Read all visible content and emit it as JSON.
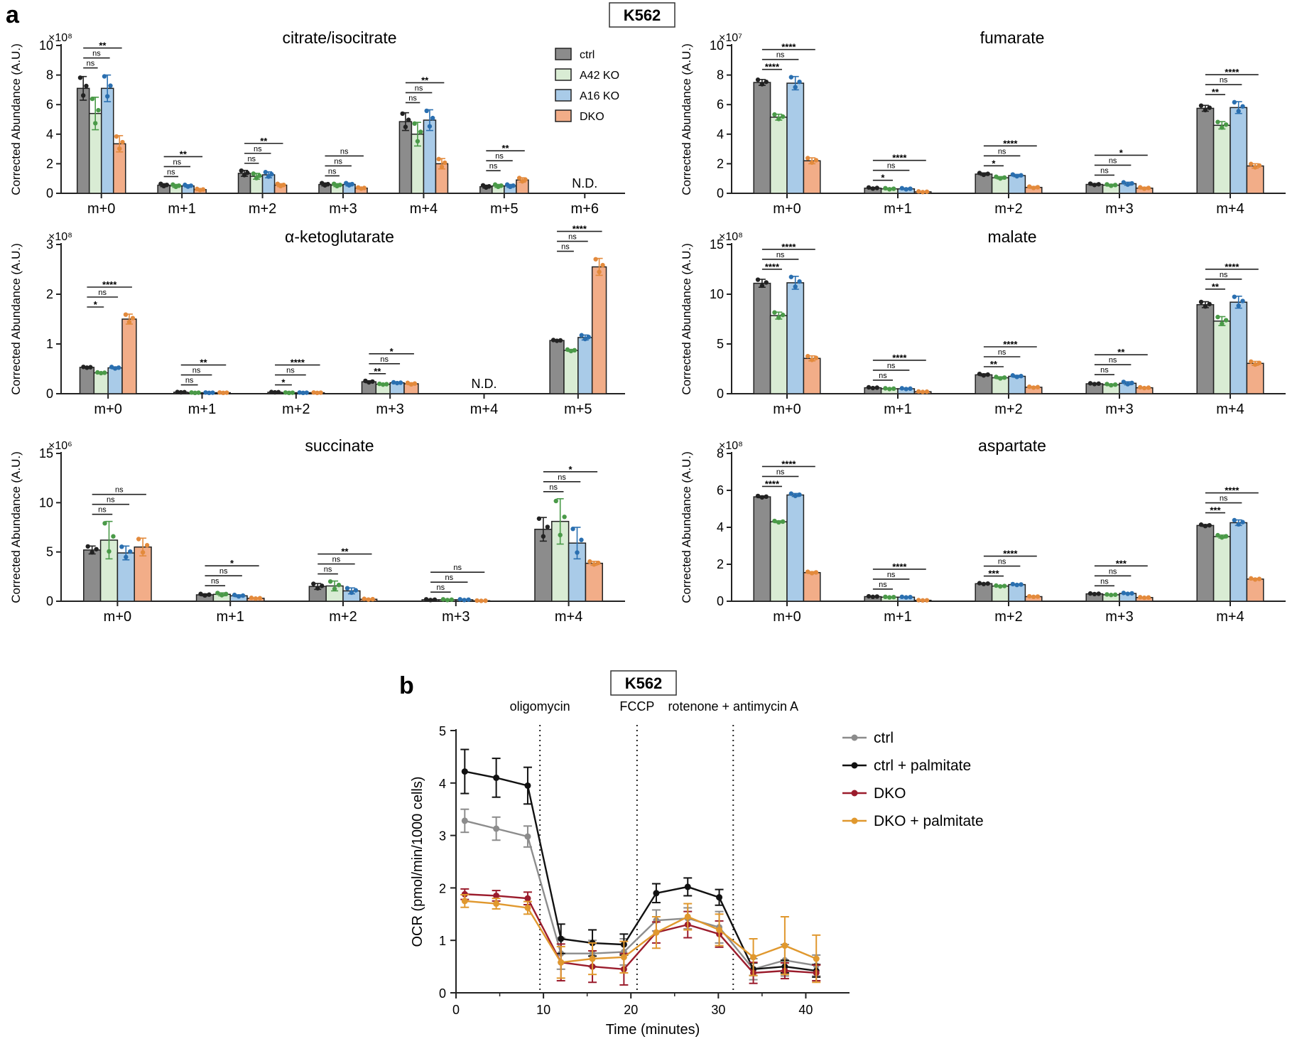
{
  "figure": {
    "panel_a_letter": "a",
    "panel_b_letter": "b",
    "cell_line_a": "K562",
    "cell_line_b": "K562"
  },
  "colors": {
    "ctrl": "#8c8c8c",
    "a42": "#d9ecd4",
    "a16": "#a9cbe8",
    "dko": "#f2ad88",
    "pt_ctrl": "#222222",
    "pt_a42": "#4a9a48",
    "pt_a16": "#2a6fb0",
    "pt_dko": "#e38a3c",
    "line_ctrl": "#8c8c8c",
    "line_ctrl_palm": "#111111",
    "line_dko": "#9b1c2c",
    "line_dko_palm": "#e0982e"
  },
  "legend_a": [
    "ctrl",
    "A42 KO",
    "A16 KO",
    "DKO"
  ],
  "chart_data": [
    {
      "type": "bar",
      "id": "citrate",
      "title": "citrate/isocitrate",
      "ylabel": "Corrected Abundance (A.U.)",
      "exponent": "×10⁸",
      "ylim": [
        0,
        10
      ],
      "yticks": [
        "0",
        "2",
        "4",
        "6",
        "8",
        "10"
      ],
      "categories": [
        "m+0",
        "m+1",
        "m+2",
        "m+3",
        "m+4",
        "m+5",
        "m+6"
      ],
      "series": [
        {
          "name": "ctrl",
          "values": [
            7.1,
            0.55,
            1.35,
            0.6,
            4.85,
            0.45,
            null
          ],
          "err": [
            0.8,
            0.1,
            0.2,
            0.1,
            0.6,
            0.1,
            null
          ]
        },
        {
          "name": "A42 KO",
          "values": [
            5.4,
            0.5,
            1.15,
            0.55,
            4.0,
            0.5,
            null
          ],
          "err": [
            1.1,
            0.1,
            0.2,
            0.1,
            0.8,
            0.1,
            null
          ]
        },
        {
          "name": "A16 KO",
          "values": [
            7.1,
            0.5,
            1.25,
            0.6,
            4.95,
            0.5,
            null
          ],
          "err": [
            0.9,
            0.08,
            0.2,
            0.1,
            0.7,
            0.1,
            null
          ]
        },
        {
          "name": "DKO",
          "values": [
            3.35,
            0.25,
            0.55,
            0.35,
            2.0,
            0.9,
            null
          ],
          "err": [
            0.55,
            0.05,
            0.1,
            0.05,
            0.35,
            0.15,
            null
          ]
        }
      ],
      "annotations": [
        {
          "cat": 0,
          "rows": [
            "ns",
            "ns",
            "**"
          ]
        },
        {
          "cat": 1,
          "rows": [
            "ns",
            "ns",
            "**"
          ]
        },
        {
          "cat": 2,
          "rows": [
            "ns",
            "ns",
            "**"
          ]
        },
        {
          "cat": 3,
          "rows": [
            "ns",
            "ns",
            "ns"
          ]
        },
        {
          "cat": 4,
          "rows": [
            "ns",
            "ns",
            "**"
          ]
        },
        {
          "cat": 5,
          "rows": [
            "ns",
            "ns",
            "**"
          ]
        },
        {
          "cat": 6,
          "nd": "N.D."
        }
      ]
    },
    {
      "type": "bar",
      "id": "fumarate",
      "title": "fumarate",
      "ylabel": "Corrected Abundance (A.U.)",
      "exponent": "×10⁷",
      "ylim": [
        0,
        10
      ],
      "yticks": [
        "0",
        "2",
        "4",
        "6",
        "8",
        "10"
      ],
      "categories": [
        "m+0",
        "m+1",
        "m+2",
        "m+3",
        "m+4"
      ],
      "series": [
        {
          "name": "ctrl",
          "values": [
            7.5,
            0.35,
            1.3,
            0.6,
            5.75
          ],
          "err": [
            0.2,
            0.05,
            0.08,
            0.06,
            0.2
          ]
        },
        {
          "name": "A42 KO",
          "values": [
            5.15,
            0.3,
            1.05,
            0.55,
            4.6
          ],
          "err": [
            0.2,
            0.05,
            0.08,
            0.06,
            0.25
          ]
        },
        {
          "name": "A16 KO",
          "values": [
            7.45,
            0.3,
            1.2,
            0.65,
            5.8
          ],
          "err": [
            0.45,
            0.05,
            0.08,
            0.1,
            0.4
          ]
        },
        {
          "name": "DKO",
          "values": [
            2.2,
            0.1,
            0.4,
            0.35,
            1.85
          ],
          "err": [
            0.2,
            0.03,
            0.06,
            0.06,
            0.15
          ]
        }
      ],
      "annotations": [
        {
          "cat": 0,
          "rows": [
            "****",
            "ns",
            "****"
          ]
        },
        {
          "cat": 1,
          "rows": [
            "*",
            "ns",
            "****"
          ]
        },
        {
          "cat": 2,
          "rows": [
            "*",
            "ns",
            "****"
          ]
        },
        {
          "cat": 3,
          "rows": [
            "ns",
            "ns",
            "*"
          ]
        },
        {
          "cat": 4,
          "rows": [
            "**",
            "ns",
            "****"
          ]
        }
      ]
    },
    {
      "type": "bar",
      "id": "akg",
      "title": "α-ketoglutarate",
      "ylabel": "Corrected Abundance (A.U.)",
      "exponent": "×10⁸",
      "ylim": [
        0,
        3
      ],
      "yticks": [
        "0",
        "1",
        "2",
        "3"
      ],
      "categories": [
        "m+0",
        "m+1",
        "m+2",
        "m+3",
        "m+4",
        "m+5"
      ],
      "series": [
        {
          "name": "ctrl",
          "values": [
            0.53,
            0.03,
            0.03,
            0.24,
            null,
            1.07
          ],
          "err": [
            0.01,
            0.005,
            0.005,
            0.02,
            null,
            0.01
          ]
        },
        {
          "name": "A42 KO",
          "values": [
            0.42,
            0.02,
            0.02,
            0.19,
            null,
            0.87
          ],
          "err": [
            0.01,
            0.005,
            0.005,
            0.01,
            null,
            0.02
          ]
        },
        {
          "name": "A16 KO",
          "values": [
            0.52,
            0.02,
            0.02,
            0.22,
            null,
            1.13
          ],
          "err": [
            0.02,
            0.005,
            0.005,
            0.01,
            null,
            0.05
          ]
        },
        {
          "name": "DKO",
          "values": [
            1.5,
            0.02,
            0.02,
            0.2,
            null,
            2.55
          ],
          "err": [
            0.1,
            0.005,
            0.005,
            0.02,
            null,
            0.17
          ]
        }
      ],
      "annotations": [
        {
          "cat": 0,
          "rows": [
            "*",
            "ns",
            "****"
          ]
        },
        {
          "cat": 1,
          "rows": [
            "ns",
            "ns",
            "**"
          ]
        },
        {
          "cat": 2,
          "rows": [
            "*",
            "ns",
            "****"
          ]
        },
        {
          "cat": 3,
          "rows": [
            "**",
            "ns",
            "*"
          ]
        },
        {
          "cat": 4,
          "nd": "N.D."
        },
        {
          "cat": 5,
          "rows": [
            "ns",
            "ns",
            "****"
          ]
        }
      ]
    },
    {
      "type": "bar",
      "id": "malate",
      "title": "malate",
      "ylabel": "Corrected Abundance (A.U.)",
      "exponent": "×10⁸",
      "ylim": [
        0,
        15
      ],
      "yticks": [
        "0",
        "5",
        "10",
        "15"
      ],
      "categories": [
        "m+0",
        "m+1",
        "m+2",
        "m+3",
        "m+4"
      ],
      "series": [
        {
          "name": "ctrl",
          "values": [
            11.1,
            0.6,
            1.9,
            1.0,
            8.95
          ],
          "err": [
            0.4,
            0.05,
            0.1,
            0.05,
            0.3
          ]
        },
        {
          "name": "A42 KO",
          "values": [
            7.85,
            0.5,
            1.6,
            0.9,
            7.3
          ],
          "err": [
            0.35,
            0.05,
            0.1,
            0.08,
            0.45
          ]
        },
        {
          "name": "A16 KO",
          "values": [
            11.15,
            0.5,
            1.75,
            1.05,
            9.2
          ],
          "err": [
            0.65,
            0.05,
            0.1,
            0.15,
            0.6
          ]
        },
        {
          "name": "DKO",
          "values": [
            3.55,
            0.2,
            0.65,
            0.6,
            3.05
          ],
          "err": [
            0.25,
            0.03,
            0.06,
            0.05,
            0.2
          ]
        }
      ],
      "annotations": [
        {
          "cat": 0,
          "rows": [
            "****",
            "ns",
            "****"
          ]
        },
        {
          "cat": 1,
          "rows": [
            "ns",
            "ns",
            "****"
          ]
        },
        {
          "cat": 2,
          "rows": [
            "**",
            "ns",
            "****"
          ]
        },
        {
          "cat": 3,
          "rows": [
            "ns",
            "ns",
            "**"
          ]
        },
        {
          "cat": 4,
          "rows": [
            "**",
            "ns",
            "****"
          ]
        }
      ]
    },
    {
      "type": "bar",
      "id": "succinate",
      "title": "succinate",
      "ylabel": "Corrected Abundance (A.U.)",
      "exponent": "×10⁶",
      "ylim": [
        0,
        15
      ],
      "yticks": [
        "0",
        "5",
        "10",
        "15"
      ],
      "categories": [
        "m+0",
        "m+1",
        "m+2",
        "m+3",
        "m+4"
      ],
      "series": [
        {
          "name": "ctrl",
          "values": [
            5.2,
            0.65,
            1.5,
            0.15,
            7.3
          ],
          "err": [
            0.4,
            0.1,
            0.3,
            0.05,
            1.2
          ]
        },
        {
          "name": "A42 KO",
          "values": [
            6.2,
            0.7,
            1.55,
            0.15,
            8.1
          ],
          "err": [
            1.9,
            0.15,
            0.5,
            0.05,
            2.3
          ]
        },
        {
          "name": "A16 KO",
          "values": [
            4.9,
            0.55,
            1.05,
            0.15,
            5.9
          ],
          "err": [
            0.7,
            0.1,
            0.3,
            0.05,
            1.6
          ]
        },
        {
          "name": "DKO",
          "values": [
            5.5,
            0.3,
            0.2,
            0.05,
            3.85
          ],
          "err": [
            0.9,
            0.05,
            0.05,
            0.02,
            0.2
          ]
        }
      ],
      "annotations": [
        {
          "cat": 0,
          "rows": [
            "ns",
            "ns",
            "ns"
          ]
        },
        {
          "cat": 1,
          "rows": [
            "ns",
            "ns",
            "*"
          ]
        },
        {
          "cat": 2,
          "rows": [
            "ns",
            "ns",
            "**"
          ]
        },
        {
          "cat": 3,
          "rows": [
            "ns",
            "ns",
            "ns"
          ]
        },
        {
          "cat": 4,
          "rows": [
            "ns",
            "ns",
            "*"
          ]
        }
      ]
    },
    {
      "type": "bar",
      "id": "aspartate",
      "title": "aspartate",
      "ylabel": "Corrected Abundance (A.U.)",
      "exponent": "×10⁸",
      "ylim": [
        0,
        8
      ],
      "yticks": [
        "0",
        "2",
        "4",
        "6",
        "8"
      ],
      "categories": [
        "m+0",
        "m+1",
        "m+2",
        "m+3",
        "m+4"
      ],
      "series": [
        {
          "name": "ctrl",
          "values": [
            5.65,
            0.25,
            0.95,
            0.4,
            4.1
          ],
          "err": [
            0.05,
            0.02,
            0.03,
            0.02,
            0.05
          ]
        },
        {
          "name": "A42 KO",
          "values": [
            4.3,
            0.22,
            0.82,
            0.35,
            3.5
          ],
          "err": [
            0.05,
            0.02,
            0.03,
            0.02,
            0.08
          ]
        },
        {
          "name": "A16 KO",
          "values": [
            5.75,
            0.22,
            0.9,
            0.42,
            4.25
          ],
          "err": [
            0.08,
            0.02,
            0.03,
            0.03,
            0.15
          ]
        },
        {
          "name": "DKO",
          "values": [
            1.55,
            0.05,
            0.25,
            0.2,
            1.2
          ],
          "err": [
            0.05,
            0.01,
            0.02,
            0.02,
            0.04
          ]
        }
      ],
      "annotations": [
        {
          "cat": 0,
          "rows": [
            "****",
            "ns",
            "****"
          ]
        },
        {
          "cat": 1,
          "rows": [
            "ns",
            "ns",
            "****"
          ]
        },
        {
          "cat": 2,
          "rows": [
            "***",
            "ns",
            "****"
          ]
        },
        {
          "cat": 3,
          "rows": [
            "ns",
            "ns",
            "***"
          ]
        },
        {
          "cat": 4,
          "rows": [
            "***",
            "ns",
            "****"
          ]
        }
      ]
    },
    {
      "type": "line",
      "id": "ocr",
      "xlabel": "Time (minutes)",
      "ylabel": "OCR (pmol/min/1000 cells)",
      "xlim": [
        0,
        45
      ],
      "ylim": [
        0,
        5
      ],
      "xticks": [
        "0",
        "10",
        "20",
        "30",
        "40"
      ],
      "yticks": [
        "0",
        "1",
        "2",
        "3",
        "4",
        "5"
      ],
      "injections": [
        {
          "x": 9.6,
          "label": "oligomycin"
        },
        {
          "x": 20.7,
          "label": "FCCP"
        },
        {
          "x": 31.7,
          "label": "rotenone + antimycin A"
        }
      ],
      "x": [
        1,
        4.6,
        8.2,
        12,
        15.6,
        19.2,
        22.9,
        26.5,
        30.1,
        34,
        37.6,
        41.2
      ],
      "series": [
        {
          "name": "ctrl",
          "values": [
            3.28,
            3.13,
            2.98,
            0.75,
            0.75,
            0.78,
            1.38,
            1.42,
            1.25,
            0.45,
            0.62,
            0.52
          ],
          "err": [
            0.22,
            0.22,
            0.2,
            0.3,
            0.25,
            0.25,
            0.2,
            0.2,
            0.3,
            0.2,
            0.3,
            0.2
          ]
        },
        {
          "name": "ctrl + palmitate",
          "values": [
            4.22,
            4.1,
            3.95,
            1.03,
            0.95,
            0.92,
            1.9,
            2.02,
            1.82,
            0.45,
            0.5,
            0.42
          ],
          "err": [
            0.42,
            0.37,
            0.35,
            0.28,
            0.25,
            0.2,
            0.18,
            0.17,
            0.15,
            0.12,
            0.12,
            0.12
          ]
        },
        {
          "name": "DKO",
          "values": [
            1.88,
            1.85,
            1.8,
            0.58,
            0.5,
            0.45,
            1.15,
            1.3,
            1.12,
            0.38,
            0.42,
            0.38
          ],
          "err": [
            0.1,
            0.1,
            0.12,
            0.35,
            0.3,
            0.3,
            0.2,
            0.25,
            0.25,
            0.2,
            0.15,
            0.15
          ]
        },
        {
          "name": "DKO + palmitate",
          "values": [
            1.75,
            1.7,
            1.62,
            0.58,
            0.65,
            0.68,
            1.15,
            1.45,
            1.2,
            0.68,
            0.9,
            0.65
          ],
          "err": [
            0.12,
            0.1,
            0.12,
            0.3,
            0.3,
            0.3,
            0.3,
            0.25,
            0.3,
            0.35,
            0.55,
            0.45
          ]
        }
      ]
    }
  ]
}
